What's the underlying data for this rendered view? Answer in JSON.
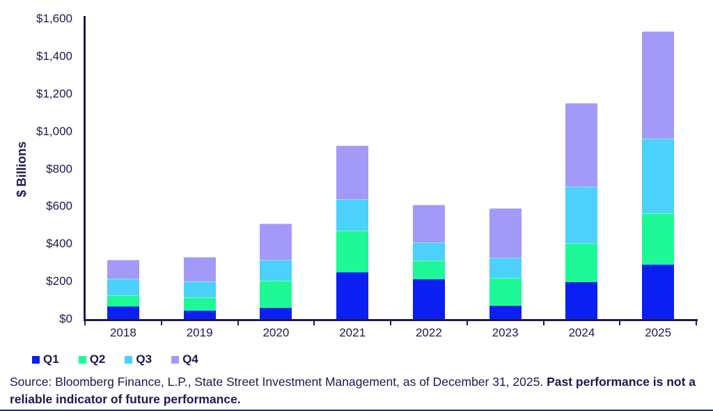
{
  "chart_data": {
    "type": "bar",
    "stacked": true,
    "title": "",
    "xlabel": "",
    "ylabel": "$ Billions",
    "categories": [
      "2018",
      "2019",
      "2020",
      "2021",
      "2022",
      "2023",
      "2024",
      "2025"
    ],
    "series": [
      {
        "name": "Q1",
        "color": "#0B1FF2",
        "values": [
          65,
          45,
          60,
          250,
          210,
          70,
          195,
          290
        ]
      },
      {
        "name": "Q2",
        "color": "#1FF896",
        "values": [
          60,
          70,
          145,
          220,
          100,
          150,
          210,
          275
        ]
      },
      {
        "name": "Q3",
        "color": "#4BD1FB",
        "values": [
          90,
          85,
          110,
          170,
          100,
          105,
          300,
          395
        ]
      },
      {
        "name": "Q4",
        "color": "#A399F8",
        "values": [
          100,
          130,
          195,
          285,
          200,
          265,
          445,
          575
        ]
      }
    ],
    "ylim": [
      0,
      1600
    ],
    "ytick_interval": 200,
    "ytick_labels": [
      "$0",
      "$200",
      "$400",
      "$600",
      "$800",
      "$1,000",
      "$1,200",
      "$1,400",
      "$1,600"
    ],
    "grid": false,
    "legend_position": "bottom-left",
    "axis_color": "#1B1B4E",
    "label_color": "#1A1A4D"
  },
  "footer": {
    "source_regular": "Source: Bloomberg Finance, L.P., State Street Investment Management, as of December 31, 2025. ",
    "source_bold": "Past performance is not a reliable indicator of future performance."
  }
}
